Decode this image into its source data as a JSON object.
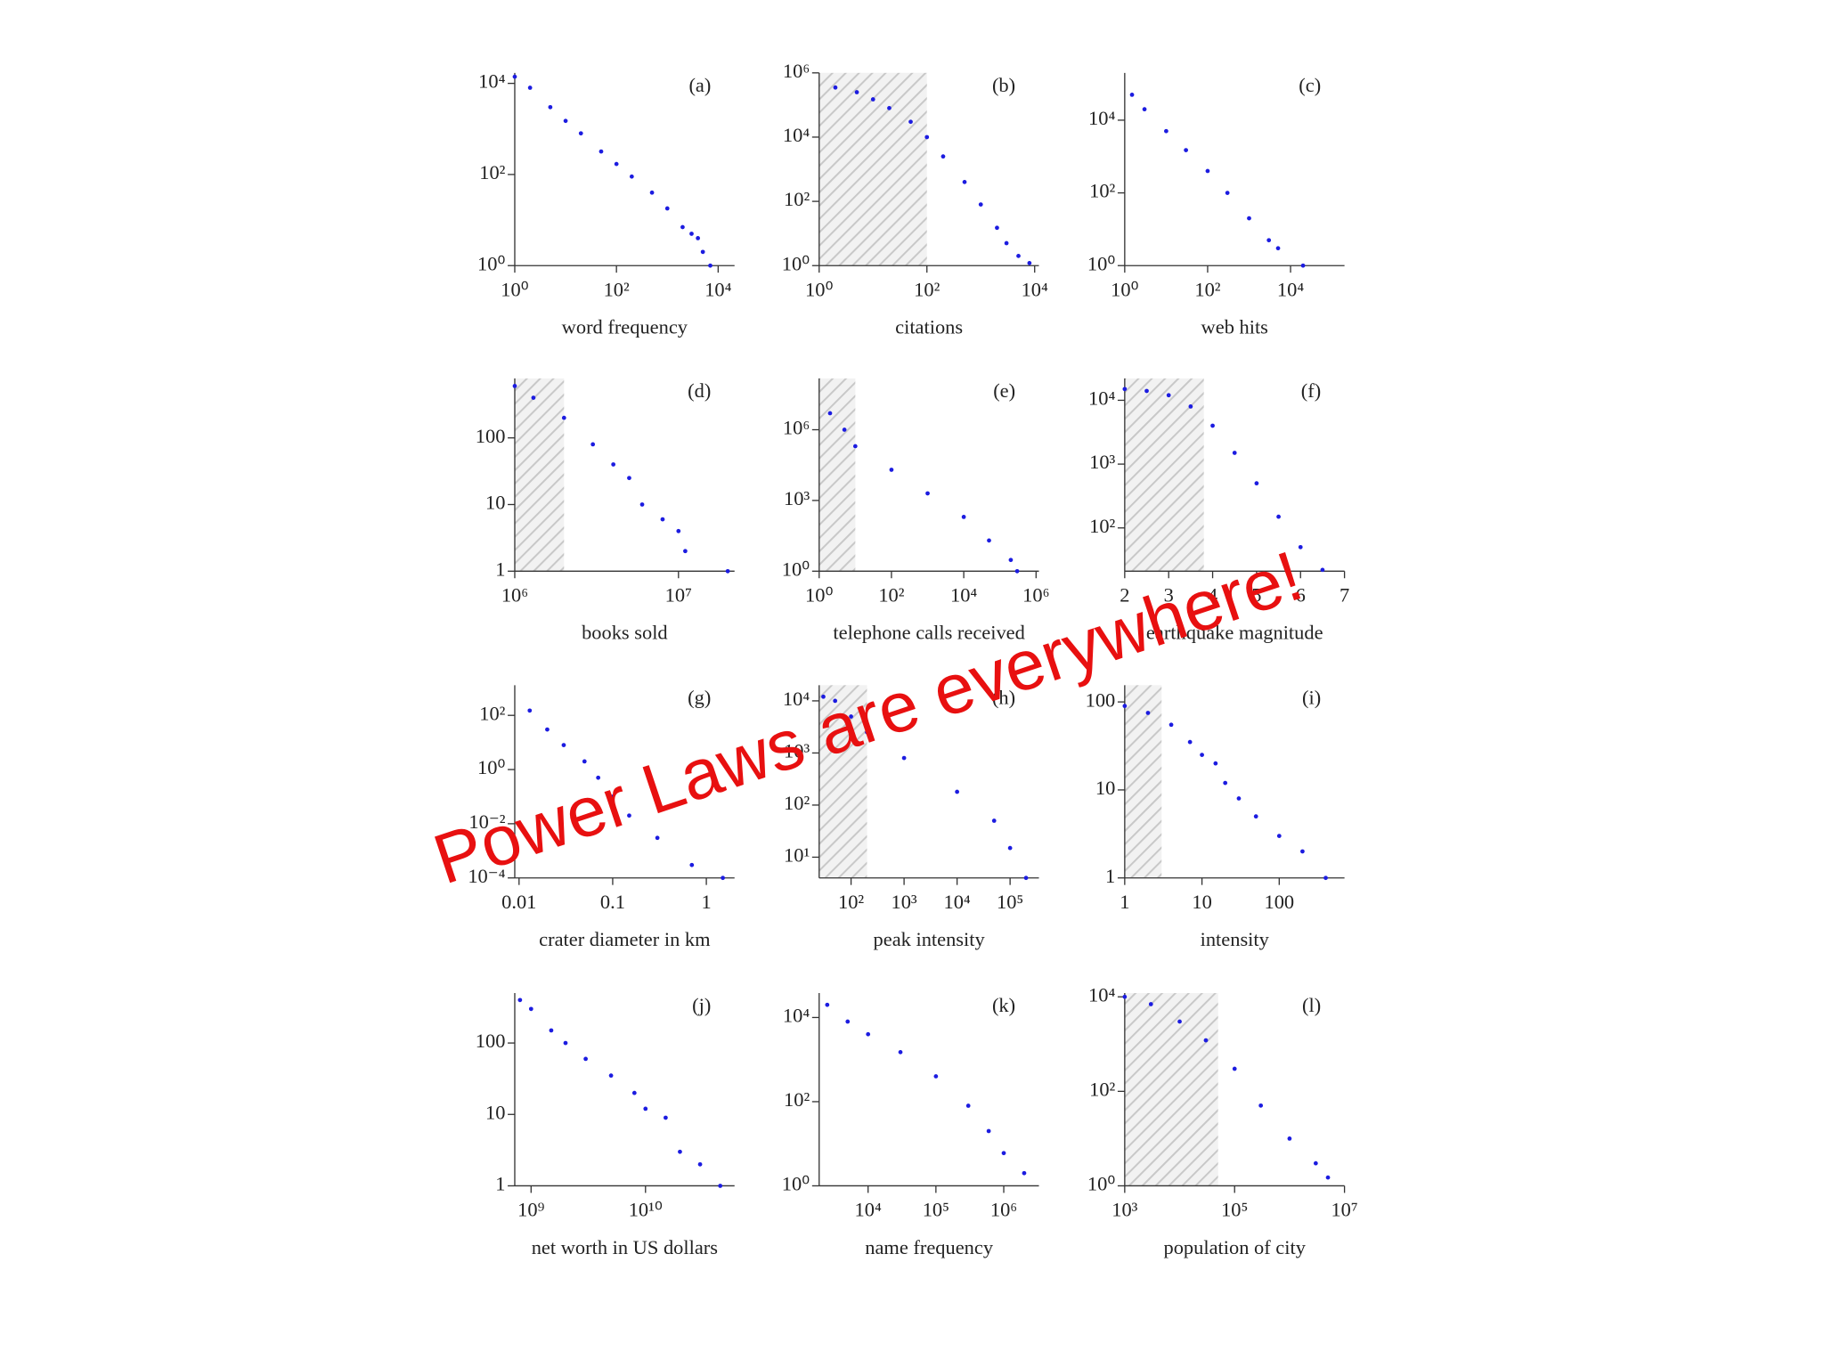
{
  "overlay_text": "Power Laws are everywhere!",
  "chart_data": [
    {
      "type": "scatter",
      "label": "(a)",
      "xlabel": "word frequency",
      "xscale": "log",
      "yscale": "log",
      "xlim": [
        1,
        21000
      ],
      "ylim": [
        1,
        17000
      ],
      "xticks": [
        {
          "value": 1,
          "label": "10⁰"
        },
        {
          "value": 100,
          "label": "10²"
        },
        {
          "value": 10000,
          "label": "10⁴"
        }
      ],
      "yticks": [
        {
          "value": 1,
          "label": "10⁰"
        },
        {
          "value": 100,
          "label": "10²"
        },
        {
          "value": 10000,
          "label": "10⁴"
        }
      ],
      "series": [
        {
          "color": "#1c1ce0",
          "x": [
            1,
            2,
            5,
            10,
            20,
            50,
            100,
            200,
            500,
            1000,
            2000,
            3000,
            4000,
            5000,
            7000
          ],
          "values": [
            14000,
            8000,
            3000,
            1500,
            800,
            320,
            170,
            90,
            40,
            18,
            7,
            5,
            4,
            2,
            1
          ]
        }
      ]
    },
    {
      "type": "scatter",
      "label": "(b)",
      "xlabel": "citations",
      "xscale": "log",
      "yscale": "log",
      "xlim": [
        1,
        12000
      ],
      "ylim": [
        1,
        1000000
      ],
      "shaded_x": [
        1,
        100
      ],
      "xticks": [
        {
          "value": 1,
          "label": "10⁰"
        },
        {
          "value": 100,
          "label": "10²"
        },
        {
          "value": 10000,
          "label": "10⁴"
        }
      ],
      "yticks": [
        {
          "value": 1,
          "label": "10⁰"
        },
        {
          "value": 100,
          "label": "10²"
        },
        {
          "value": 10000,
          "label": "10⁴"
        },
        {
          "value": 1000000,
          "label": "10⁶"
        }
      ],
      "series": [
        {
          "color": "#1c1ce0",
          "x": [
            2,
            5,
            10,
            20,
            50,
            100,
            200,
            500,
            1000,
            2000,
            3000,
            5000,
            8000
          ],
          "values": [
            350000,
            250000,
            150000,
            80000,
            30000,
            10000,
            2500,
            400,
            80,
            15,
            5,
            2,
            1.2
          ]
        }
      ]
    },
    {
      "type": "scatter",
      "label": "(c)",
      "xlabel": "web hits",
      "xscale": "log",
      "yscale": "log",
      "xlim": [
        1,
        200000
      ],
      "ylim": [
        1,
        200000
      ],
      "xticks": [
        {
          "value": 1,
          "label": "10⁰"
        },
        {
          "value": 100,
          "label": "10²"
        },
        {
          "value": 10000,
          "label": "10⁴"
        }
      ],
      "yticks": [
        {
          "value": 1,
          "label": "10⁰"
        },
        {
          "value": 100,
          "label": "10²"
        },
        {
          "value": 10000,
          "label": "10⁴"
        }
      ],
      "series": [
        {
          "color": "#1c1ce0",
          "x": [
            1.5,
            3,
            10,
            30,
            100,
            300,
            1000,
            3000,
            5000,
            20000
          ],
          "values": [
            50000,
            20000,
            5000,
            1500,
            400,
            100,
            20,
            5,
            3,
            1
          ]
        }
      ]
    },
    {
      "type": "scatter",
      "label": "(d)",
      "xlabel": "books sold",
      "xscale": "log",
      "yscale": "log",
      "xlim": [
        1000000,
        22000000
      ],
      "ylim": [
        1,
        780
      ],
      "shaded_x": [
        1000000,
        2000000
      ],
      "xticks": [
        {
          "value": 1000000,
          "label": "10⁶"
        },
        {
          "value": 10000000,
          "label": "10⁷"
        }
      ],
      "yticks": [
        1,
        10,
        100
      ],
      "series": [
        {
          "color": "#1c1ce0",
          "x": [
            1000000,
            1300000,
            2000000,
            3000000,
            4000000,
            5000000,
            6000000,
            8000000,
            10000000,
            11000000,
            20000000
          ],
          "values": [
            600,
            400,
            200,
            80,
            40,
            25,
            10,
            6,
            4,
            2,
            1
          ]
        }
      ]
    },
    {
      "type": "scatter",
      "label": "(e)",
      "xlabel": "telephone calls received",
      "xscale": "log",
      "yscale": "log",
      "xlim": [
        1,
        1200000
      ],
      "ylim": [
        1,
        150000000
      ],
      "shaded_x": [
        1,
        10
      ],
      "xticks": [
        {
          "value": 1,
          "label": "10⁰"
        },
        {
          "value": 100,
          "label": "10²"
        },
        {
          "value": 10000,
          "label": "10⁴"
        },
        {
          "value": 1000000,
          "label": "10⁶"
        }
      ],
      "yticks": [
        {
          "value": 1,
          "label": "10⁰"
        },
        {
          "value": 1000,
          "label": "10³"
        },
        {
          "value": 1000000,
          "label": "10⁶"
        }
      ],
      "series": [
        {
          "color": "#1c1ce0",
          "x": [
            2,
            5,
            10,
            100,
            1000,
            10000,
            50000,
            200000,
            300000
          ],
          "values": [
            5000000,
            1000000,
            200000,
            20000,
            2000,
            200,
            20,
            3,
            1
          ]
        }
      ]
    },
    {
      "type": "scatter",
      "label": "(f)",
      "xlabel": "earthquake magnitude",
      "xscale": "linear",
      "yscale": "log",
      "xlim": [
        2,
        7
      ],
      "ylim": [
        21,
        22000
      ],
      "shaded_x": [
        2,
        3.8
      ],
      "xticks": [
        2,
        3,
        4,
        5,
        6,
        7
      ],
      "yticks": [
        {
          "value": 100,
          "label": "10²"
        },
        {
          "value": 1000,
          "label": "10³"
        },
        {
          "value": 10000,
          "label": "10⁴"
        }
      ],
      "series": [
        {
          "color": "#1c1ce0",
          "x": [
            2,
            2.5,
            3,
            3.5,
            4,
            4.5,
            5,
            5.5,
            6,
            6.5
          ],
          "values": [
            15000,
            14000,
            12000,
            8000,
            4000,
            1500,
            500,
            150,
            50,
            22
          ]
        }
      ]
    },
    {
      "type": "scatter",
      "label": "(g)",
      "xlabel": "crater diameter in km",
      "xscale": "log",
      "yscale": "log",
      "xlim": [
        0.009,
        2
      ],
      "ylim": [
        0.0001,
        1300
      ],
      "xticks": [
        0.01,
        0.1,
        1
      ],
      "yticks": [
        {
          "value": 0.0001,
          "label": "10⁻⁴"
        },
        {
          "value": 0.01,
          "label": "10⁻²"
        },
        {
          "value": 1,
          "label": "10⁰"
        },
        {
          "value": 100,
          "label": "10²"
        }
      ],
      "series": [
        {
          "color": "#1c1ce0",
          "x": [
            0.013,
            0.02,
            0.03,
            0.05,
            0.07,
            0.1,
            0.15,
            0.3,
            0.7,
            1.5
          ],
          "values": [
            150,
            30,
            8,
            2,
            0.5,
            0.1,
            0.02,
            0.003,
            0.0003,
            0.0001
          ]
        }
      ]
    },
    {
      "type": "scatter",
      "label": "(h)",
      "xlabel": "peak intensity",
      "xscale": "log",
      "yscale": "log",
      "xlim": [
        25,
        350000
      ],
      "ylim": [
        4,
        20000
      ],
      "shaded_x": [
        25,
        200
      ],
      "xticks": [
        {
          "value": 100,
          "label": "10²"
        },
        {
          "value": 1000,
          "label": "10³"
        },
        {
          "value": 10000,
          "label": "10⁴"
        },
        {
          "value": 100000,
          "label": "10⁵"
        }
      ],
      "yticks": [
        {
          "value": 10,
          "label": "10¹"
        },
        {
          "value": 100,
          "label": "10²"
        },
        {
          "value": 1000,
          "label": "10³"
        },
        {
          "value": 10000,
          "label": "10⁴"
        }
      ],
      "series": [
        {
          "color": "#1c1ce0",
          "x": [
            30,
            50,
            100,
            200,
            1000,
            10000,
            50000,
            100000,
            200000
          ],
          "values": [
            12000,
            10000,
            5000,
            2500,
            800,
            180,
            50,
            15,
            4
          ]
        }
      ]
    },
    {
      "type": "scatter",
      "label": "(i)",
      "xlabel": "intensity",
      "xscale": "log",
      "yscale": "log",
      "xlim": [
        1,
        700
      ],
      "ylim": [
        1,
        155
      ],
      "shaded_x": [
        1,
        3
      ],
      "xticks": [
        1,
        10,
        100
      ],
      "yticks": [
        1,
        10,
        100
      ],
      "series": [
        {
          "color": "#1c1ce0",
          "x": [
            1,
            2,
            4,
            7,
            10,
            15,
            20,
            30,
            50,
            100,
            200,
            400
          ],
          "values": [
            90,
            75,
            55,
            35,
            25,
            20,
            12,
            8,
            5,
            3,
            2,
            1
          ]
        }
      ]
    },
    {
      "type": "scatter",
      "label": "(j)",
      "xlabel": "net worth in US dollars",
      "xscale": "log",
      "yscale": "log",
      "xlim": [
        720000000,
        60000000000
      ],
      "ylim": [
        1,
        500
      ],
      "xticks": [
        {
          "value": 1000000000,
          "label": "10⁹"
        },
        {
          "value": 10000000000,
          "label": "10¹⁰"
        }
      ],
      "yticks": [
        1,
        10,
        100
      ],
      "series": [
        {
          "color": "#1c1ce0",
          "x": [
            800000000,
            1000000000,
            1500000000,
            2000000000,
            3000000000,
            5000000000,
            8000000000,
            10000000000,
            15000000000,
            20000000000,
            30000000000,
            45000000000
          ],
          "values": [
            400,
            300,
            150,
            100,
            60,
            35,
            20,
            12,
            9,
            3,
            2,
            1
          ]
        }
      ]
    },
    {
      "type": "scatter",
      "label": "(k)",
      "xlabel": "name frequency",
      "xscale": "log",
      "yscale": "log",
      "xlim": [
        1900,
        3300000
      ],
      "ylim": [
        1,
        38000
      ],
      "xticks": [
        {
          "value": 10000,
          "label": "10⁴"
        },
        {
          "value": 100000,
          "label": "10⁵"
        },
        {
          "value": 1000000,
          "label": "10⁶"
        }
      ],
      "yticks": [
        {
          "value": 1,
          "label": "10⁰"
        },
        {
          "value": 100,
          "label": "10²"
        },
        {
          "value": 10000,
          "label": "10⁴"
        }
      ],
      "series": [
        {
          "color": "#1c1ce0",
          "x": [
            2500,
            5000,
            10000,
            30000,
            100000,
            300000,
            600000,
            1000000,
            2000000
          ],
          "values": [
            20000,
            8000,
            4000,
            1500,
            400,
            80,
            20,
            6,
            2
          ]
        }
      ]
    },
    {
      "type": "scatter",
      "label": "(l)",
      "xlabel": "population of city",
      "xscale": "log",
      "yscale": "log",
      "xlim": [
        1000,
        10000000
      ],
      "ylim": [
        1,
        12000
      ],
      "shaded_x": [
        1000,
        50000
      ],
      "xticks": [
        {
          "value": 1000,
          "label": "10³"
        },
        {
          "value": 100000,
          "label": "10⁵"
        },
        {
          "value": 10000000,
          "label": "10⁷"
        }
      ],
      "yticks": [
        {
          "value": 1,
          "label": "10⁰"
        },
        {
          "value": 100,
          "label": "10²"
        },
        {
          "value": 10000,
          "label": "10⁴"
        }
      ],
      "series": [
        {
          "color": "#1c1ce0",
          "x": [
            1000,
            3000,
            10000,
            30000,
            100000,
            300000,
            1000000,
            3000000,
            5000000
          ],
          "values": [
            10000,
            7000,
            3000,
            1200,
            300,
            50,
            10,
            3,
            1.5
          ]
        }
      ]
    }
  ]
}
